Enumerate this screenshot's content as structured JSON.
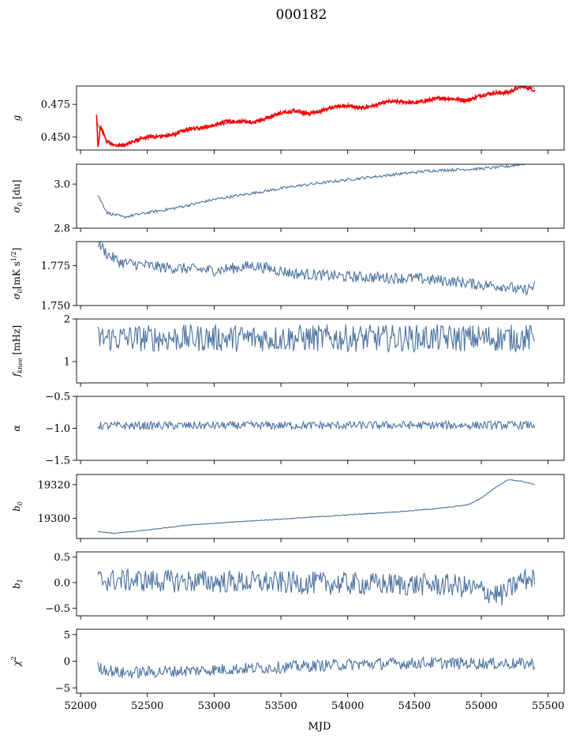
{
  "figure_title": "000182",
  "colors": {
    "series": "#4c72a0",
    "fit": "#ff0000",
    "axes": "#000000"
  },
  "chart_data": {
    "type": "line",
    "xlabel": "MJD",
    "xlim": [
      51970,
      55620
    ],
    "xticks": [
      52000,
      52500,
      53000,
      53500,
      54000,
      54500,
      55000,
      55500
    ],
    "grid": false,
    "panels": [
      {
        "id": "g",
        "ylabel": "g",
        "ylabel_sub": "",
        "ylabel_sup": "",
        "ylabel_unit": "",
        "ylim": [
          0.44,
          0.489
        ],
        "yticks": [
          0.45,
          0.475
        ],
        "ytick_labels": [
          "0.450",
          "0.475"
        ],
        "start": 52120,
        "end": 55400,
        "anchors": [
          [
            52120,
            0.462
          ],
          [
            52200,
            0.446
          ],
          [
            52300,
            0.443
          ],
          [
            52400,
            0.447
          ],
          [
            52500,
            0.45
          ],
          [
            52600,
            0.45
          ],
          [
            52700,
            0.452
          ],
          [
            52800,
            0.456
          ],
          [
            52900,
            0.457
          ],
          [
            53000,
            0.459
          ],
          [
            53100,
            0.461
          ],
          [
            53200,
            0.462
          ],
          [
            53300,
            0.461
          ],
          [
            53400,
            0.465
          ],
          [
            53500,
            0.468
          ],
          [
            53600,
            0.47
          ],
          [
            53700,
            0.468
          ],
          [
            53800,
            0.47
          ],
          [
            53900,
            0.473
          ],
          [
            54000,
            0.474
          ],
          [
            54100,
            0.472
          ],
          [
            54200,
            0.474
          ],
          [
            54300,
            0.477
          ],
          [
            54400,
            0.477
          ],
          [
            54500,
            0.476
          ],
          [
            54600,
            0.478
          ],
          [
            54700,
            0.48
          ],
          [
            54800,
            0.479
          ],
          [
            54900,
            0.478
          ],
          [
            55000,
            0.482
          ],
          [
            55100,
            0.483
          ],
          [
            55200,
            0.484
          ],
          [
            55300,
            0.488
          ],
          [
            55400,
            0.487
          ]
        ],
        "noise": 0.0006,
        "overlay": {
          "name": "",
          "start": 52120,
          "end": 55400,
          "anchors": [
            [
              52120,
              0.468
            ],
            [
              52130,
              0.441
            ],
            [
              52150,
              0.458
            ],
            [
              52200,
              0.446
            ],
            [
              52300,
              0.443
            ],
            [
              52400,
              0.447
            ],
            [
              52500,
              0.45
            ],
            [
              52600,
              0.45
            ],
            [
              52700,
              0.452
            ],
            [
              52800,
              0.456
            ],
            [
              52900,
              0.457
            ],
            [
              53000,
              0.459
            ],
            [
              53100,
              0.462
            ],
            [
              53200,
              0.462
            ],
            [
              53300,
              0.461
            ],
            [
              53400,
              0.465
            ],
            [
              53500,
              0.468
            ],
            [
              53600,
              0.47
            ],
            [
              53700,
              0.468
            ],
            [
              53800,
              0.47
            ],
            [
              53900,
              0.473
            ],
            [
              54000,
              0.474
            ],
            [
              54100,
              0.472
            ],
            [
              54200,
              0.474
            ],
            [
              54300,
              0.477
            ],
            [
              54400,
              0.477
            ],
            [
              54500,
              0.476
            ],
            [
              54600,
              0.478
            ],
            [
              54700,
              0.48
            ],
            [
              54800,
              0.479
            ],
            [
              54900,
              0.478
            ],
            [
              55000,
              0.482
            ],
            [
              55100,
              0.484
            ],
            [
              55200,
              0.484
            ],
            [
              55300,
              0.489
            ],
            [
              55400,
              0.486
            ]
          ],
          "noise": 0.0009
        }
      },
      {
        "id": "sigma0_du",
        "ylabel": "σ",
        "ylabel_sub": "0",
        "ylabel_sup": "",
        "ylabel_unit": " [du]",
        "ylim": [
          2.8,
          3.09
        ],
        "yticks": [
          2.8,
          3.0
        ],
        "ytick_labels": [
          "2.8",
          "3.0"
        ],
        "start": 52130,
        "end": 55400,
        "anchors": [
          [
            52130,
            2.95
          ],
          [
            52200,
            2.87
          ],
          [
            52320,
            2.85
          ],
          [
            52500,
            2.87
          ],
          [
            52700,
            2.89
          ],
          [
            53000,
            2.93
          ],
          [
            53300,
            2.96
          ],
          [
            53600,
            2.99
          ],
          [
            54000,
            3.02
          ],
          [
            54300,
            3.04
          ],
          [
            54600,
            3.06
          ],
          [
            55000,
            3.07
          ],
          [
            55200,
            3.08
          ],
          [
            55400,
            3.1
          ]
        ],
        "noise": 0.004
      },
      {
        "id": "sigma0_mks",
        "ylabel": "σ",
        "ylabel_sub": "0",
        "ylabel_sup": "1/2",
        "ylabel_unit": "[mK s",
        "ylim": [
          1.75,
          1.79
        ],
        "yticks": [
          1.75,
          1.775
        ],
        "ytick_labels": [
          "1.750",
          "1.775"
        ],
        "start": 52130,
        "end": 55400,
        "anchors": [
          [
            52130,
            1.79
          ],
          [
            52200,
            1.782
          ],
          [
            52300,
            1.777
          ],
          [
            52600,
            1.774
          ],
          [
            53000,
            1.772
          ],
          [
            53300,
            1.775
          ],
          [
            53600,
            1.77
          ],
          [
            54000,
            1.768
          ],
          [
            54500,
            1.767
          ],
          [
            54800,
            1.765
          ],
          [
            55000,
            1.763
          ],
          [
            55200,
            1.762
          ],
          [
            55300,
            1.759
          ],
          [
            55400,
            1.762
          ]
        ],
        "noise": 0.0022
      },
      {
        "id": "fknee",
        "ylabel": "f",
        "ylabel_sub": "knee",
        "ylabel_sup": "",
        "ylabel_unit": " [mHz]",
        "ylim": [
          0.5,
          2.0
        ],
        "yticks": [
          1,
          2
        ],
        "ytick_labels": [
          "1",
          "2"
        ],
        "start": 52130,
        "end": 55400,
        "anchors": [
          [
            52130,
            1.55
          ],
          [
            55400,
            1.55
          ]
        ],
        "noise": 0.2
      },
      {
        "id": "alpha",
        "ylabel": "α",
        "ylabel_sub": "",
        "ylabel_sup": "",
        "ylabel_unit": "",
        "ylim": [
          -1.5,
          -0.5
        ],
        "yticks": [
          -1.5,
          -1.0,
          -0.5
        ],
        "ytick_labels": [
          "−1.5",
          "−1.0",
          "−0.5"
        ],
        "start": 52130,
        "end": 55400,
        "anchors": [
          [
            52130,
            -0.96
          ],
          [
            55400,
            -0.95
          ]
        ],
        "noise": 0.04
      },
      {
        "id": "b0",
        "ylabel": "b",
        "ylabel_sub": "0",
        "ylabel_sup": "",
        "ylabel_unit": "",
        "ylim": [
          19288,
          19326
        ],
        "yticks": [
          19300,
          19320
        ],
        "ytick_labels": [
          "19300",
          "19320"
        ],
        "start": 52130,
        "end": 55400,
        "anchors": [
          [
            52130,
            19292
          ],
          [
            52250,
            19291
          ],
          [
            52500,
            19293
          ],
          [
            52800,
            19296
          ],
          [
            53200,
            19298
          ],
          [
            53600,
            19300
          ],
          [
            54000,
            19302
          ],
          [
            54400,
            19304
          ],
          [
            54700,
            19306
          ],
          [
            54900,
            19308
          ],
          [
            55000,
            19312
          ],
          [
            55100,
            19318
          ],
          [
            55200,
            19323
          ],
          [
            55300,
            19322
          ],
          [
            55400,
            19320
          ]
        ],
        "noise": 0.15
      },
      {
        "id": "b1",
        "ylabel": "b",
        "ylabel_sub": "1",
        "ylabel_sup": "",
        "ylabel_unit": "",
        "ylim": [
          -0.65,
          0.6
        ],
        "yticks": [
          -0.5,
          0.0,
          0.5
        ],
        "ytick_labels": [
          "−0.5",
          "0.0",
          "0.5"
        ],
        "start": 52130,
        "end": 55400,
        "anchors": [
          [
            52130,
            0.05
          ],
          [
            53500,
            0.0
          ],
          [
            54800,
            -0.05
          ],
          [
            55000,
            -0.15
          ],
          [
            55150,
            -0.25
          ],
          [
            55300,
            0.05
          ],
          [
            55400,
            0.1
          ]
        ],
        "noise": 0.14
      },
      {
        "id": "chi2",
        "ylabel": "χ",
        "ylabel_sub": "",
        "ylabel_sup": "2",
        "ylabel_unit": "",
        "ylim": [
          -6,
          6
        ],
        "yticks": [
          -5,
          0,
          5
        ],
        "ytick_labels": [
          "−5",
          "0",
          "5"
        ],
        "start": 52130,
        "end": 55400,
        "anchors": [
          [
            52130,
            -1.2
          ],
          [
            52300,
            -2.2
          ],
          [
            52800,
            -1.8
          ],
          [
            53400,
            -1.2
          ],
          [
            54000,
            -0.6
          ],
          [
            54600,
            -0.3
          ],
          [
            55400,
            -0.5
          ]
        ],
        "noise": 0.7
      }
    ]
  }
}
